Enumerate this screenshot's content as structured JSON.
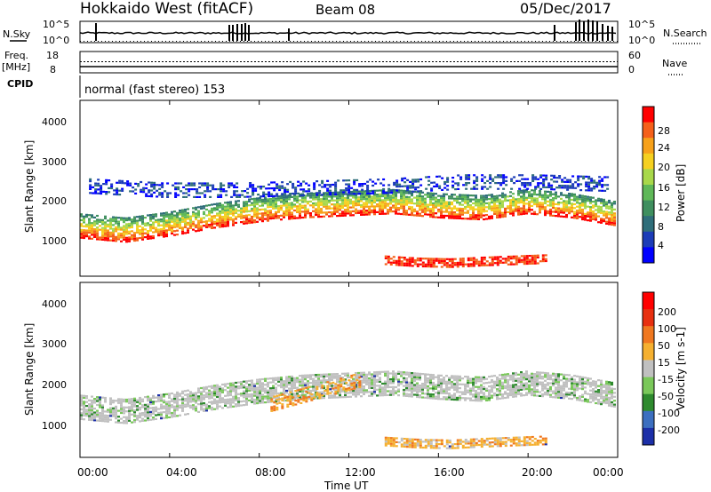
{
  "header": {
    "station": "Hokkaido West (fitACF)",
    "beam": "Beam 08",
    "date": "05/Dec/2017"
  },
  "top_panels": {
    "nsky_label": "N.Sky",
    "nsky_ticks": [
      "10^5",
      "10^0"
    ],
    "nsearch_label": "N.Search",
    "nsearch_ticks": [
      "10^5",
      "10^0"
    ],
    "freq_label_1": "Freq.",
    "freq_label_2": "[MHz]",
    "freq_ticks": [
      "18",
      "8"
    ],
    "nave_label": "Nave",
    "nave_ticks": [
      "60",
      "0"
    ],
    "cpid_label": "CPID",
    "cpid_value": "normal (fast stereo) 153"
  },
  "x_axis": {
    "label": "Time UT",
    "ticks": [
      "00:00",
      "04:00",
      "08:00",
      "12:00",
      "16:00",
      "20:00",
      "00:00"
    ]
  },
  "chart_data": [
    {
      "type": "heatmap",
      "xlabel": "Time UT",
      "ylabel": "Slant Range [km]",
      "x_range_hours": [
        0,
        24
      ],
      "y_range_km": [
        180,
        4500
      ],
      "y_ticks": [
        "1000",
        "2000",
        "3000",
        "4000"
      ],
      "colorbar_label": "Power [dB]",
      "colorbar_ticks": [
        "28",
        "24",
        "20",
        "16",
        "12",
        "8",
        "4"
      ],
      "colors": [
        "#0000ff",
        "#1c3cb8",
        "#2f6e7a",
        "#3f8f5f",
        "#5fb858",
        "#a8d84a",
        "#f5d020",
        "#f7a11a",
        "#f5601a",
        "#ff0000"
      ],
      "layers": [
        {
          "feature": "main echo band",
          "from_h": 0.0,
          "to_h": 23.9,
          "base_km": [
            1100,
            1000,
            1150,
            1350,
            1500,
            1600,
            1650,
            1700,
            1600,
            1550,
            1700,
            1600,
            1400
          ],
          "power_db": 22
        },
        {
          "feature": "near-range echoes",
          "from_h": 13.6,
          "to_h": 20.8,
          "base_km": [
            450,
            400,
            380,
            420,
            450,
            480
          ],
          "power_db": 26
        },
        {
          "feature": "upper scatter",
          "from_h": 0.4,
          "to_h": 23.6,
          "base_km": [
            2200,
            2100,
            2100,
            2150,
            2200,
            2300,
            2300,
            2250
          ],
          "power_db": 5
        }
      ]
    },
    {
      "type": "heatmap",
      "xlabel": "Time UT",
      "ylabel": "Slant Range [km]",
      "x_range_hours": [
        0,
        24
      ],
      "y_range_km": [
        180,
        4500
      ],
      "y_ticks": [
        "1000",
        "2000",
        "3000",
        "4000"
      ],
      "colorbar_label": "Velocity [m s-1]",
      "colorbar_ticks": [
        "200",
        "100",
        "50",
        "15",
        "-15",
        "-50",
        "-100",
        "-200"
      ],
      "colors": [
        "#1c2fa8",
        "#3c6fc0",
        "#2e8a2e",
        "#7ac85a",
        "#c0c0c0",
        "#f5b030",
        "#f07820",
        "#e83010",
        "#ff0000"
      ],
      "layers": [
        {
          "feature": "ground scatter band",
          "from_h": 0.0,
          "to_h": 23.9,
          "base_km": [
            1100,
            1000,
            1150,
            1350,
            1500,
            1600,
            1650,
            1700,
            1600,
            1550,
            1700,
            1600,
            1400
          ],
          "velocity": 0
        },
        {
          "feature": "near-range flow",
          "from_h": 13.6,
          "to_h": 20.8,
          "base_km": [
            450,
            400,
            380,
            420,
            450,
            480
          ],
          "velocity": -60
        },
        {
          "feature": "edge flow",
          "from_h": 8.5,
          "to_h": 12.5,
          "base_km": [
            1300,
            1500,
            1700,
            1900
          ],
          "velocity": -50
        }
      ]
    }
  ],
  "series_lines": {
    "nsky_level": 0.45,
    "freq_level": 0.27,
    "nave_level": 0.53
  }
}
